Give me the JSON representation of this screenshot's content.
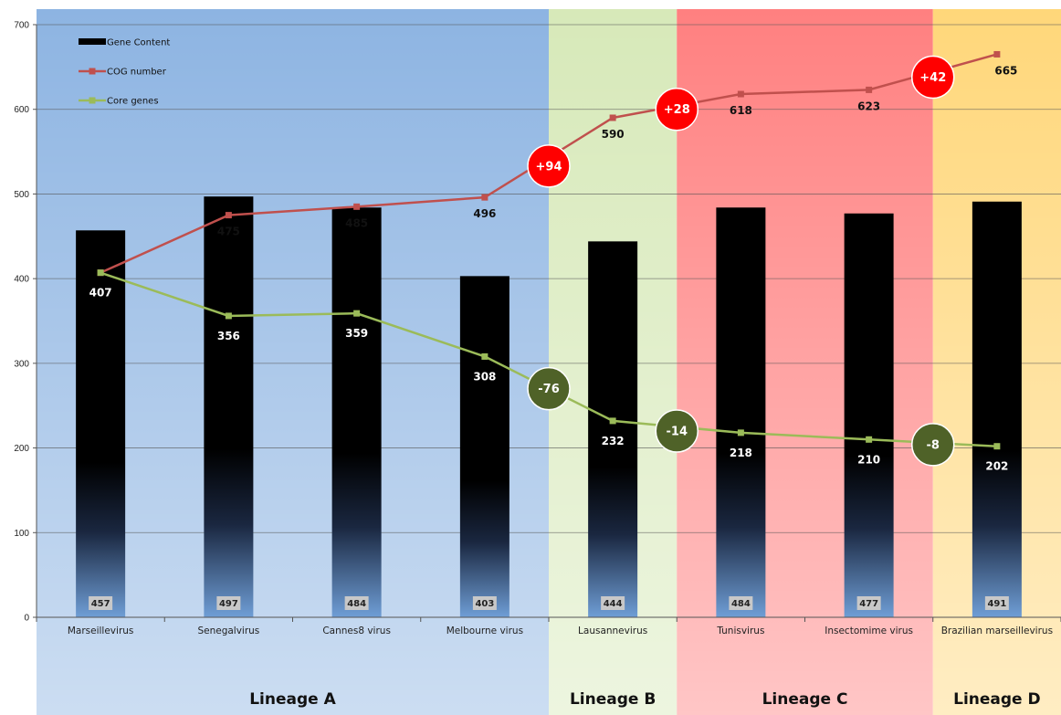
{
  "chart_data": {
    "type": "bar",
    "categories": [
      "Marseillevirus",
      "Senegalvirus",
      "Cannes8 virus",
      "Melbourne virus",
      "Lausannevirus",
      "Tunisvirus",
      "Insectomime virus",
      "Brazilian marseillevirus"
    ],
    "ylim": [
      0,
      700
    ],
    "yticks": [
      0,
      100,
      200,
      300,
      400,
      500,
      600,
      700
    ],
    "grid": true,
    "legend_position": "top-left",
    "series": [
      {
        "name": "Gene Content",
        "kind": "bar",
        "color": "#000000",
        "values": [
          457,
          497,
          484,
          403,
          444,
          484,
          477,
          491
        ]
      },
      {
        "name": "COG number",
        "kind": "line",
        "color": "#c0504d",
        "values": [
          407,
          475,
          485,
          496,
          590,
          618,
          623,
          665
        ]
      },
      {
        "name": "Core genes",
        "kind": "line",
        "color": "#9bbb59",
        "values": [
          407,
          356,
          359,
          308,
          232,
          218,
          210,
          202
        ]
      }
    ],
    "cog_value_labels": [
      "",
      "475",
      "485",
      "496",
      "590",
      "618",
      "623",
      "665"
    ],
    "core_value_labels": [
      "407",
      "356",
      "359",
      "308",
      "232",
      "218",
      "210",
      "202"
    ],
    "lineages": [
      {
        "name": "Lineage A",
        "start": 0,
        "end": 3,
        "color": "#8db4e2"
      },
      {
        "name": "Lineage B",
        "start": 4,
        "end": 4,
        "color": "#d7e9b9"
      },
      {
        "name": "Lineage C",
        "start": 5,
        "end": 6,
        "color": "#ff8080"
      },
      {
        "name": "Lineage D",
        "start": 7,
        "end": 7,
        "color": "#ffd77a"
      }
    ],
    "cog_increments": [
      {
        "label": "+94",
        "between": [
          3,
          4
        ],
        "value": 533
      },
      {
        "label": "+28",
        "between": [
          4,
          5
        ],
        "value": 600
      },
      {
        "label": "+42",
        "between": [
          6,
          7
        ],
        "value": 638
      }
    ],
    "core_decrements": [
      {
        "label": "-76",
        "between": [
          3,
          4
        ],
        "value": 270
      },
      {
        "label": "-14",
        "between": [
          4,
          5
        ],
        "value": 220
      },
      {
        "label": "-8",
        "between": [
          6,
          7
        ],
        "value": 204
      }
    ]
  }
}
